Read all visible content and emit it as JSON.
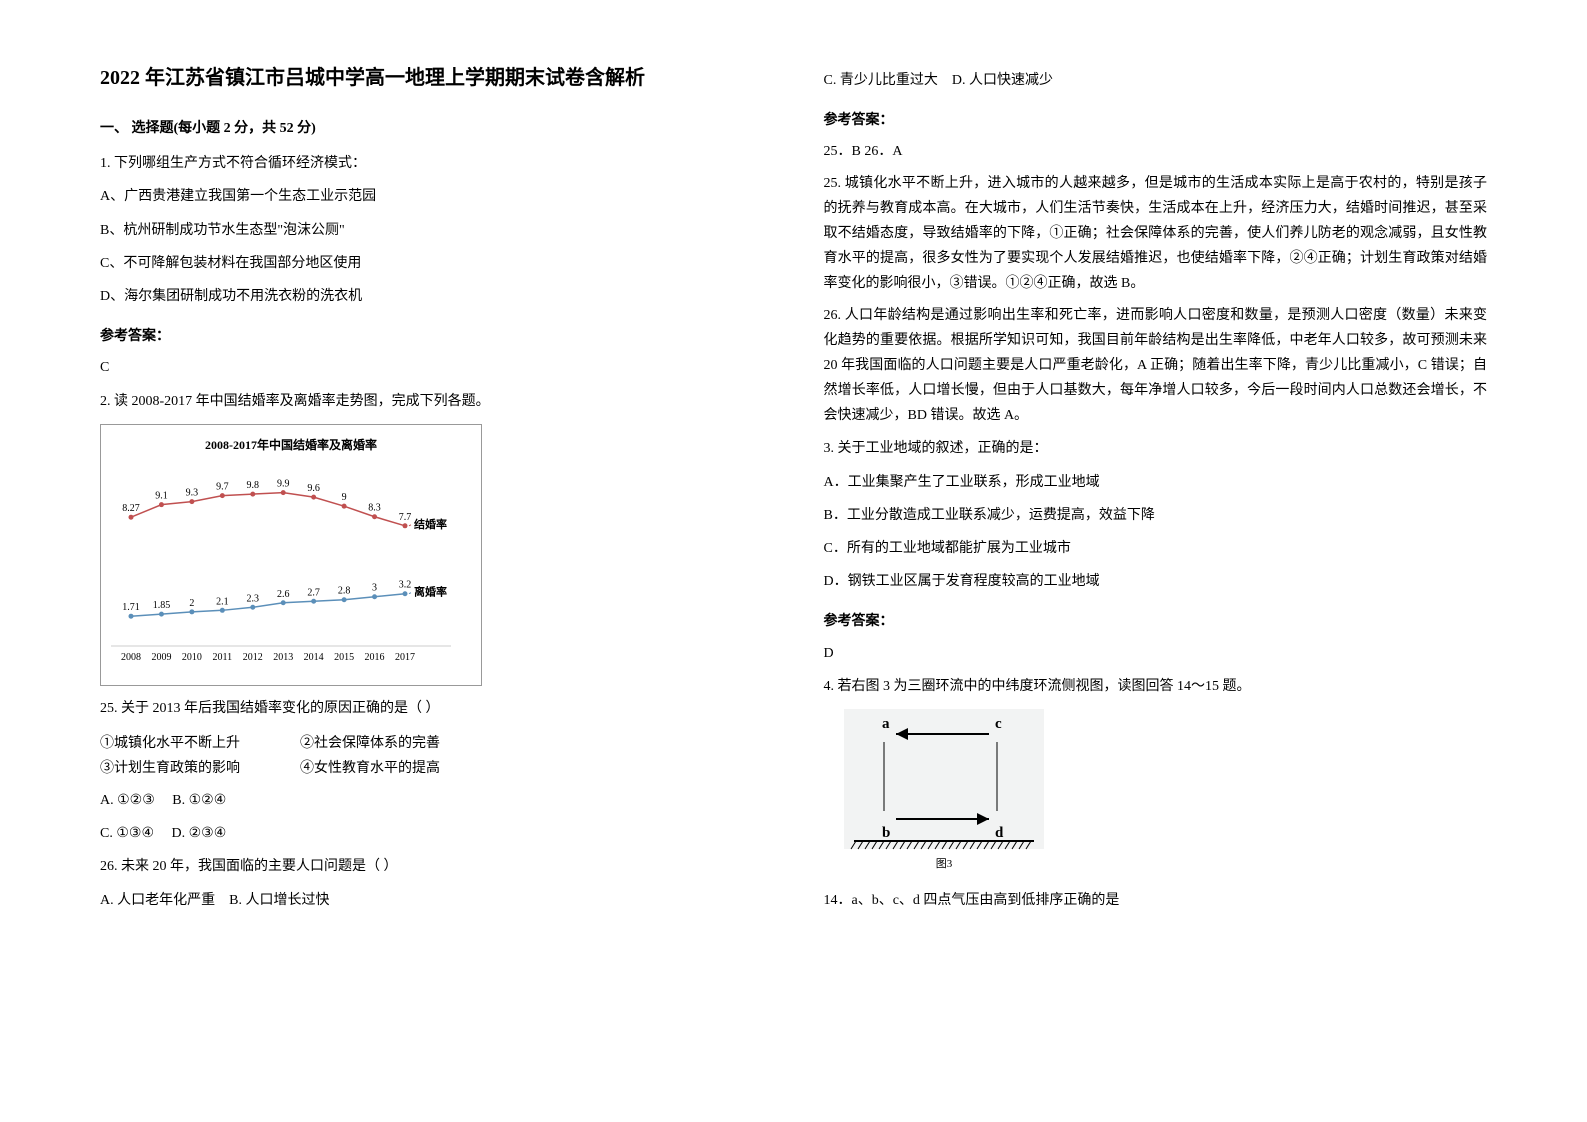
{
  "title": "2022 年江苏省镇江市吕城中学高一地理上学期期末试卷含解析",
  "section1_header": "一、 选择题(每小题 2 分，共 52 分)",
  "q1": {
    "stem": "1. 下列哪组生产方式不符合循环经济模式：",
    "optA": "A、广西贵港建立我国第一个生态工业示范园",
    "optB": "B、杭州研制成功节水生态型\"泡沫公厕\"",
    "optC": "C、不可降解包装材料在我国部分地区使用",
    "optD": "D、海尔集团研制成功不用洗衣粉的洗衣机",
    "answer_label": "参考答案：",
    "answer": "C"
  },
  "q2": {
    "stem": "2. 读 2008-2017 年中国结婚率及离婚率走势图，完成下列各题。",
    "chart": {
      "title": "2008-2017年中国结婚率及离婚率",
      "years": [
        "2008",
        "2009",
        "2010",
        "2011",
        "2012",
        "2013",
        "2014",
        "2015",
        "2016",
        "2017"
      ],
      "marriage_label": "结婚率",
      "divorce_label": "离婚率",
      "marriage_values": [
        8.27,
        9.1,
        9.3,
        9.7,
        9.8,
        9.9,
        9.6,
        9,
        8.3,
        7.7
      ],
      "divorce_values": [
        1.71,
        1.85,
        2,
        2.1,
        2.3,
        2.6,
        2.7,
        2.8,
        3,
        3.2
      ],
      "line_colors": [
        "#c05050",
        "#5b8fb9"
      ],
      "grid_color": "#ddd",
      "bg": "#ffffff",
      "label_fontsize": 10,
      "ymax": 11,
      "ymin": 0
    },
    "q25_stem": "25.  关于 2013 年后我国结婚率变化的原因正确的是（ ）",
    "q25_s1": "①城镇化水平不断上升",
    "q25_s2": "②社会保障体系的完善",
    "q25_s3": "③计划生育政策的影响",
    "q25_s4": "④女性教育水平的提高",
    "q25_a": "A.  ①②③",
    "q25_b": "B.  ①②④",
    "q25_c": "C.  ①③④",
    "q25_d": "D.  ②③④",
    "q26_stem": "26.  未来 20 年，我国面临的主要人口问题是（ ）",
    "q26_a": "A. 人口老年化严重",
    "q26_b": "B. 人口增长过快",
    "q26_c": "C. 青少儿比重过大",
    "q26_d": "D. 人口快速减少",
    "answer_label": "参考答案：",
    "answer_line": "25．B          26．A",
    "explain25": "25. 城镇化水平不断上升，进入城市的人越来越多，但是城市的生活成本实际上是高于农村的，特别是孩子的抚养与教育成本高。在大城市，人们生活节奏快，生活成本在上升，经济压力大，结婚时间推迟，甚至采取不结婚态度，导致结婚率的下降，①正确；社会保障体系的完善，使人们养儿防老的观念减弱，且女性教育水平的提高，很多女性为了要实现个人发展结婚推迟，也使结婚率下降，②④正确；计划生育政策对结婚率变化的影响很小，③错误。①②④正确，故选 B。",
    "explain26": "26. 人口年龄结构是通过影响出生率和死亡率，进而影响人口密度和数量，是预测人口密度（数量）未来变化趋势的重要依据。根据所学知识可知，我国目前年龄结构是出生率降低，中老年人口较多，故可预测未来 20 年我国面临的人口问题主要是人口严重老龄化，A 正确；随着出生率下降，青少儿比重减小，C 错误；自然增长率低，人口增长慢，但由于人口基数大，每年净增人口较多，今后一段时间内人口总数还会增长，不会快速减少，BD 错误。故选 A。"
  },
  "q3": {
    "stem": "3. 关于工业地域的叙述，正确的是：",
    "optA": "A．工业集聚产生了工业联系，形成工业地域",
    "optB": "B．工业分散造成工业联系减少，运费提高，效益下降",
    "optC": "C．所有的工业地域都能扩展为工业城市",
    "optD": "D．钢铁工业区属于发育程度较高的工业地域",
    "answer_label": "参考答案：",
    "answer": "D"
  },
  "q4": {
    "stem": "4. 若右图 3 为三圈环流中的中纬度环流侧视图，读图回答 14～15 题。",
    "diagram": {
      "labels": {
        "a": "a",
        "b": "b",
        "c": "c",
        "d": "d",
        "caption": "图3"
      },
      "bg": "#f2f3f3",
      "arrow_color": "#000000"
    },
    "q14_stem": "14．a、b、c、d 四点气压由高到低排序正确的是"
  }
}
